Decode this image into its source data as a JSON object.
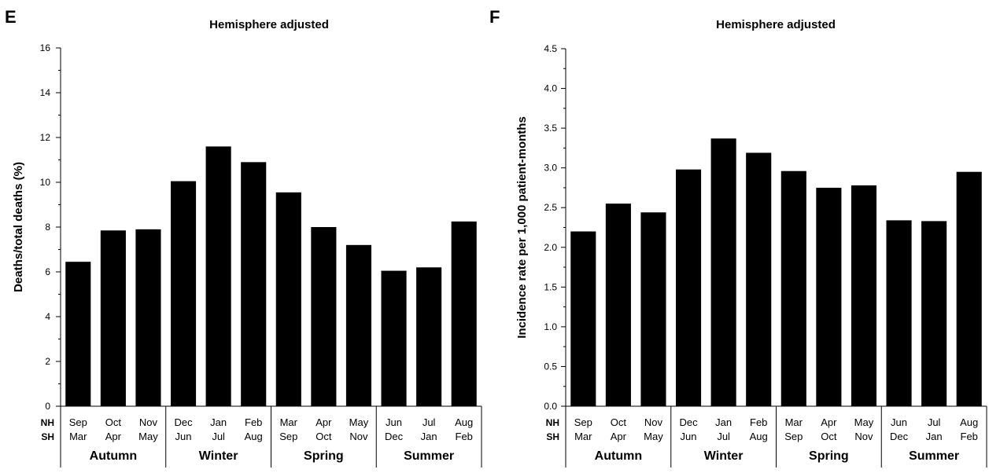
{
  "chart_data": [
    {
      "panel": "E",
      "type": "bar",
      "title": "Hemisphere adjusted",
      "ylabel": "Deaths/total deaths (%)",
      "ylim": [
        0,
        16
      ],
      "yticks": [
        "0",
        "2",
        "4",
        "6",
        "8",
        "10",
        "12",
        "14",
        "16"
      ],
      "nh_label": "NH",
      "sh_label": "SH",
      "categories_nh": [
        "Sep",
        "Oct",
        "Nov",
        "Dec",
        "Jan",
        "Feb",
        "Mar",
        "Apr",
        "May",
        "Jun",
        "Jul",
        "Aug"
      ],
      "categories_sh": [
        "Mar",
        "Apr",
        "May",
        "Jun",
        "Jul",
        "Aug",
        "Sep",
        "Oct",
        "Nov",
        "Dec",
        "Jan",
        "Feb"
      ],
      "seasons": [
        "Autumn",
        "Winter",
        "Spring",
        "Summer"
      ],
      "values": [
        6.45,
        7.85,
        7.9,
        10.05,
        11.6,
        10.9,
        9.55,
        8.0,
        7.2,
        6.05,
        6.2,
        8.25
      ]
    },
    {
      "panel": "F",
      "type": "bar",
      "title": "Hemisphere adjusted",
      "ylabel": "Incidence rate per 1,000 patient-months",
      "ylim": [
        0,
        4.5
      ],
      "yticks": [
        "0.0",
        "0.5",
        "1.0",
        "1.5",
        "2.0",
        "2.5",
        "3.0",
        "3.5",
        "4.0",
        "4.5"
      ],
      "nh_label": "NH",
      "sh_label": "SH",
      "categories_nh": [
        "Sep",
        "Oct",
        "Nov",
        "Dec",
        "Jan",
        "Feb",
        "Mar",
        "Apr",
        "May",
        "Jun",
        "Jul",
        "Aug"
      ],
      "categories_sh": [
        "Mar",
        "Apr",
        "May",
        "Jun",
        "Jul",
        "Aug",
        "Sep",
        "Oct",
        "Nov",
        "Dec",
        "Jan",
        "Feb"
      ],
      "seasons": [
        "Autumn",
        "Winter",
        "Spring",
        "Summer"
      ],
      "values": [
        2.2,
        2.55,
        2.44,
        2.98,
        3.37,
        3.19,
        2.96,
        2.75,
        2.78,
        2.34,
        2.33,
        2.95
      ]
    }
  ]
}
